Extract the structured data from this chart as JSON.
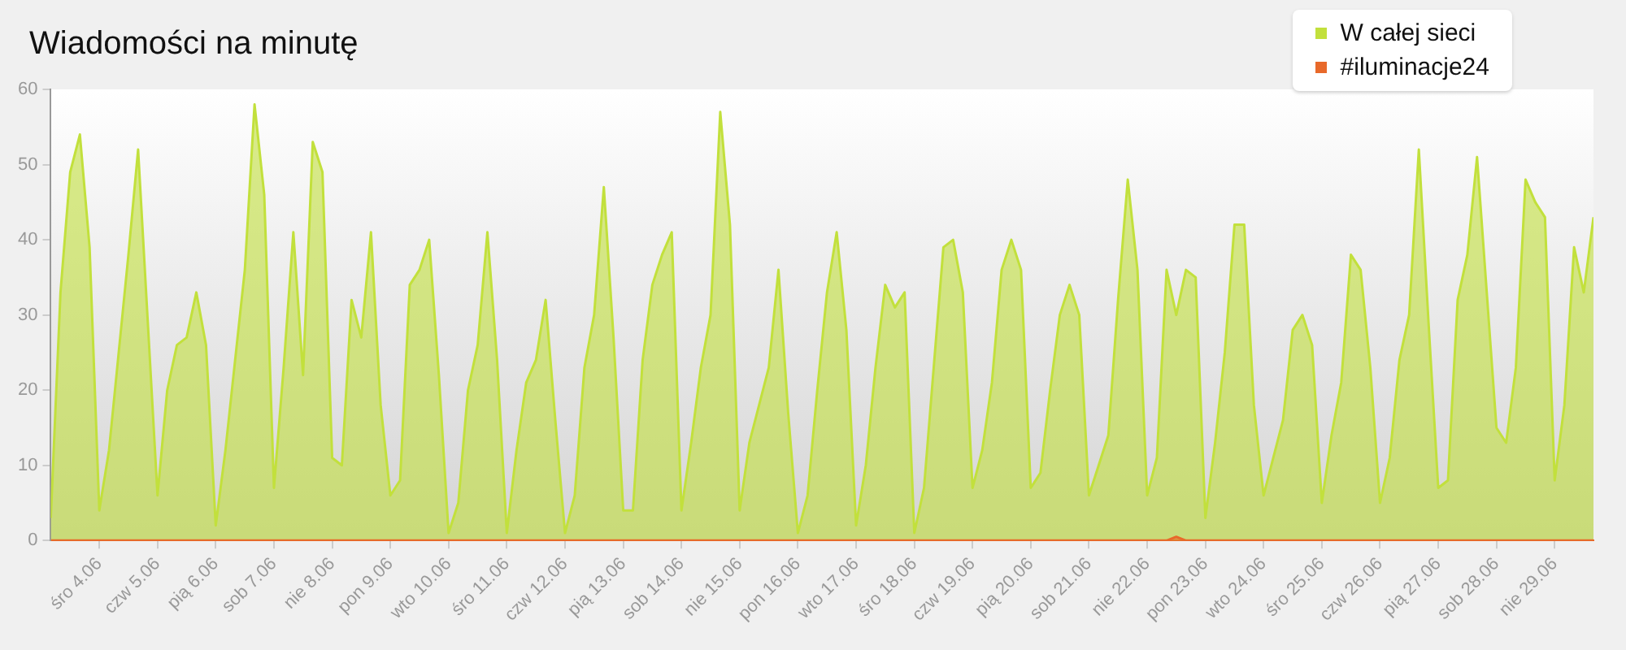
{
  "chart_data": {
    "type": "area",
    "title": "Wiadomości na minutę",
    "legend": "top right",
    "marker": "none",
    "xlim": [
      "--06-03T04:00",
      "--06-29T16:00"
    ],
    "xticks": [
      {
        "value": "--06-04T00:00",
        "label": "śro 4.06"
      },
      {
        "value": "--06-05T00:00",
        "label": "czw 5.06"
      },
      {
        "value": "--06-06T00:00",
        "label": "pią 6.06"
      },
      {
        "value": "--06-07T00:00",
        "label": "sob 7.06"
      },
      {
        "value": "--06-08T00:00",
        "label": "nie 8.06"
      },
      {
        "value": "--06-09T00:00",
        "label": "pon 9.06"
      },
      {
        "value": "--06-10T00:00",
        "label": "wto 10.06"
      },
      {
        "value": "--06-11T00:00",
        "label": "śro 11.06"
      },
      {
        "value": "--06-12T00:00",
        "label": "czw 12.06"
      },
      {
        "value": "--06-13T00:00",
        "label": "pią 13.06"
      },
      {
        "value": "--06-14T00:00",
        "label": "sob 14.06"
      },
      {
        "value": "--06-15T00:00",
        "label": "nie 15.06"
      },
      {
        "value": "--06-16T00:00",
        "label": "pon 16.06"
      },
      {
        "value": "--06-17T00:00",
        "label": "wto 17.06"
      },
      {
        "value": "--06-18T00:00",
        "label": "śro 18.06"
      },
      {
        "value": "--06-19T00:00",
        "label": "czw 19.06"
      },
      {
        "value": "--06-20T00:00",
        "label": "pią 20.06"
      },
      {
        "value": "--06-21T00:00",
        "label": "sob 21.06"
      },
      {
        "value": "--06-22T00:00",
        "label": "nie 22.06"
      },
      {
        "value": "--06-23T00:00",
        "label": "pon 23.06"
      },
      {
        "value": "--06-24T00:00",
        "label": "wto 24.06"
      },
      {
        "value": "--06-25T00:00",
        "label": "śro 25.06"
      },
      {
        "value": "--06-26T00:00",
        "label": "czw 26.06"
      },
      {
        "value": "--06-27T00:00",
        "label": "pią 27.06"
      },
      {
        "value": "--06-28T00:00",
        "label": "sob 28.06"
      },
      {
        "value": "--06-29T00:00",
        "label": "nie 29.06"
      }
    ],
    "ylim": [
      0,
      60
    ],
    "yticks": [
      0,
      10,
      20,
      30,
      40,
      50,
      60
    ],
    "x": [
      "--06-03T04:00",
      "--06-03T08:00",
      "--06-03T12:00",
      "--06-03T16:00",
      "--06-03T20:00",
      "--06-04T00:00",
      "--06-04T04:00",
      "--06-04T08:00",
      "--06-04T12:00",
      "--06-04T16:00",
      "--06-04T20:00",
      "--06-05T00:00",
      "--06-05T04:00",
      "--06-05T08:00",
      "--06-05T12:00",
      "--06-05T16:00",
      "--06-05T20:00",
      "--06-06T00:00",
      "--06-06T04:00",
      "--06-06T08:00",
      "--06-06T12:00",
      "--06-06T16:00",
      "--06-06T20:00",
      "--06-07T00:00",
      "--06-07T04:00",
      "--06-07T08:00",
      "--06-07T12:00",
      "--06-07T16:00",
      "--06-07T20:00",
      "--06-08T00:00",
      "--06-08T04:00",
      "--06-08T08:00",
      "--06-08T12:00",
      "--06-08T16:00",
      "--06-08T20:00",
      "--06-09T00:00",
      "--06-09T04:00",
      "--06-09T08:00",
      "--06-09T12:00",
      "--06-09T16:00",
      "--06-09T20:00",
      "--06-10T00:00",
      "--06-10T04:00",
      "--06-10T08:00",
      "--06-10T12:00",
      "--06-10T16:00",
      "--06-10T20:00",
      "--06-11T00:00",
      "--06-11T04:00",
      "--06-11T08:00",
      "--06-11T12:00",
      "--06-11T16:00",
      "--06-11T20:00",
      "--06-12T00:00",
      "--06-12T04:00",
      "--06-12T08:00",
      "--06-12T12:00",
      "--06-12T16:00",
      "--06-12T20:00",
      "--06-13T00:00",
      "--06-13T04:00",
      "--06-13T08:00",
      "--06-13T12:00",
      "--06-13T16:00",
      "--06-13T20:00",
      "--06-14T00:00",
      "--06-14T04:00",
      "--06-14T08:00",
      "--06-14T12:00",
      "--06-14T16:00",
      "--06-14T20:00",
      "--06-15T00:00",
      "--06-15T04:00",
      "--06-15T08:00",
      "--06-15T12:00",
      "--06-15T16:00",
      "--06-15T20:00",
      "--06-16T00:00",
      "--06-16T04:00",
      "--06-16T08:00",
      "--06-16T12:00",
      "--06-16T16:00",
      "--06-16T20:00",
      "--06-17T00:00",
      "--06-17T04:00",
      "--06-17T08:00",
      "--06-17T12:00",
      "--06-17T16:00",
      "--06-17T20:00",
      "--06-18T00:00",
      "--06-18T04:00",
      "--06-18T08:00",
      "--06-18T12:00",
      "--06-18T16:00",
      "--06-18T20:00",
      "--06-19T00:00",
      "--06-19T04:00",
      "--06-19T08:00",
      "--06-19T12:00",
      "--06-19T16:00",
      "--06-19T20:00",
      "--06-20T00:00",
      "--06-20T04:00",
      "--06-20T08:00",
      "--06-20T12:00",
      "--06-20T16:00",
      "--06-20T20:00",
      "--06-21T00:00",
      "--06-21T04:00",
      "--06-21T08:00",
      "--06-21T12:00",
      "--06-21T16:00",
      "--06-21T20:00",
      "--06-22T00:00",
      "--06-22T04:00",
      "--06-22T08:00",
      "--06-22T12:00",
      "--06-22T16:00",
      "--06-22T20:00",
      "--06-23T00:00",
      "--06-23T04:00",
      "--06-23T08:00",
      "--06-23T12:00",
      "--06-23T16:00",
      "--06-23T20:00",
      "--06-24T00:00",
      "--06-24T04:00",
      "--06-24T08:00",
      "--06-24T12:00",
      "--06-24T16:00",
      "--06-24T20:00",
      "--06-25T00:00",
      "--06-25T04:00",
      "--06-25T08:00",
      "--06-25T12:00",
      "--06-25T16:00",
      "--06-25T20:00",
      "--06-26T00:00",
      "--06-26T04:00",
      "--06-26T08:00",
      "--06-26T12:00",
      "--06-26T16:00",
      "--06-26T20:00",
      "--06-27T00:00",
      "--06-27T04:00",
      "--06-27T08:00",
      "--06-27T12:00",
      "--06-27T16:00",
      "--06-27T20:00",
      "--06-28T00:00",
      "--06-28T04:00",
      "--06-28T08:00",
      "--06-28T12:00",
      "--06-28T16:00",
      "--06-28T20:00",
      "--06-29T00:00",
      "--06-29T04:00",
      "--06-29T08:00",
      "--06-29T12:00",
      "--06-29T16:00"
    ],
    "series": [
      {
        "name": "W całej sieci",
        "color": "#c2e03c",
        "values": [
          3,
          33,
          49,
          54,
          39,
          4,
          12,
          25,
          38,
          52,
          29,
          6,
          20,
          26,
          27,
          33,
          26,
          2,
          12,
          24,
          36,
          58,
          46,
          7,
          23,
          41,
          22,
          53,
          49,
          11,
          10,
          32,
          27,
          41,
          18,
          6,
          8,
          34,
          36,
          40,
          22,
          1,
          5,
          20,
          26,
          41,
          24,
          1,
          12,
          21,
          24,
          32,
          16,
          1,
          6,
          23,
          30,
          47,
          27,
          4,
          4,
          24,
          34,
          38,
          41,
          4,
          13,
          23,
          30,
          57,
          42,
          4,
          13,
          18,
          23,
          36,
          17,
          1,
          6,
          20,
          33,
          41,
          28,
          2,
          10,
          23,
          34,
          31,
          33,
          1,
          7,
          23,
          39,
          40,
          33,
          7,
          12,
          21,
          36,
          40,
          36,
          7,
          9,
          20,
          30,
          34,
          30,
          6,
          10,
          14,
          32,
          48,
          36,
          6,
          11,
          36,
          30,
          36,
          35,
          3,
          13,
          25,
          42,
          42,
          18,
          6,
          11,
          16,
          28,
          30,
          26,
          5,
          14,
          21,
          38,
          36,
          23,
          5,
          11,
          24,
          30,
          52,
          29,
          7,
          8,
          32,
          38,
          51,
          33,
          15,
          13,
          23,
          48,
          45,
          43,
          8,
          18,
          39,
          33,
          43
        ]
      },
      {
        "name": "#iluminacje24",
        "color": "#e8692a",
        "values": [
          0,
          0,
          0,
          0,
          0,
          0,
          0,
          0,
          0,
          0,
          0,
          0,
          0,
          0,
          0,
          0,
          0,
          0,
          0,
          0,
          0,
          0,
          0,
          0,
          0,
          0,
          0,
          0,
          0,
          0,
          0,
          0,
          0,
          0,
          0,
          0,
          0,
          0,
          0,
          0,
          0,
          0,
          0,
          0,
          0,
          0,
          0,
          0,
          0,
          0,
          0,
          0,
          0,
          0,
          0,
          0,
          0,
          0,
          0,
          0,
          0,
          0,
          0,
          0,
          0,
          0,
          0,
          0,
          0,
          0,
          0,
          0,
          0,
          0,
          0,
          0,
          0,
          0,
          0,
          0,
          0,
          0,
          0,
          0,
          0,
          0,
          0,
          0,
          0,
          0,
          0,
          0,
          0,
          0,
          0,
          0,
          0,
          0,
          0,
          0,
          0,
          0,
          0,
          0,
          0,
          0,
          0,
          0,
          0,
          0,
          0,
          0,
          0,
          0,
          0,
          0,
          0.5,
          0,
          0,
          0,
          0,
          0,
          0,
          0,
          0,
          0,
          0,
          0,
          0,
          0,
          0,
          0,
          0,
          0,
          0,
          0,
          0,
          0,
          0,
          0,
          0,
          0,
          0,
          0,
          0,
          0,
          0,
          0,
          0,
          0,
          0,
          0,
          0,
          0,
          0,
          0,
          0,
          0,
          0,
          0
        ]
      }
    ]
  }
}
